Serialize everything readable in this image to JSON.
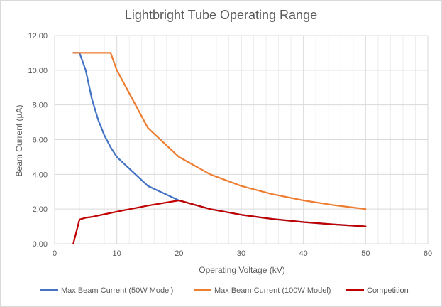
{
  "chart_data": {
    "type": "line",
    "title": "Lightbright Tube Operating Range",
    "xlabel": "Operating Voltage (kV)",
    "ylabel": "Beam Current (µA)",
    "xlim": [
      0,
      60
    ],
    "ylim": [
      0,
      12
    ],
    "x_ticks": [
      0,
      10,
      20,
      30,
      40,
      50,
      60
    ],
    "x_tick_labels": [
      "0",
      "10",
      "20",
      "30",
      "40",
      "50",
      "60"
    ],
    "y_ticks": [
      0,
      2,
      4,
      6,
      8,
      10,
      12
    ],
    "y_tick_labels": [
      "0.00",
      "2.00",
      "4.00",
      "6.00",
      "8.00",
      "10.00",
      "12.00"
    ],
    "major_grid": true,
    "minor_grid_x_step": 2,
    "legend_position": "bottom",
    "series": [
      {
        "name": "Max Beam Current (50W Model)",
        "color": "#4472c4",
        "points": [
          [
            3,
            11
          ],
          [
            4,
            11
          ],
          [
            5,
            10
          ],
          [
            6,
            8.33
          ],
          [
            7,
            7.14
          ],
          [
            8,
            6.25
          ],
          [
            9,
            5.56
          ],
          [
            10,
            5
          ],
          [
            15,
            3.33
          ],
          [
            20,
            2.5
          ],
          [
            25,
            2
          ],
          [
            30,
            1.67
          ],
          [
            35,
            1.43
          ],
          [
            40,
            1.25
          ],
          [
            45,
            1.11
          ],
          [
            50,
            1
          ]
        ]
      },
      {
        "name": "Max Beam Current (100W Model)",
        "color": "#ed7d31",
        "points": [
          [
            3,
            11
          ],
          [
            9,
            11
          ],
          [
            10,
            10
          ],
          [
            15,
            6.67
          ],
          [
            20,
            5
          ],
          [
            25,
            4
          ],
          [
            30,
            3.33
          ],
          [
            35,
            2.86
          ],
          [
            40,
            2.5
          ],
          [
            45,
            2.22
          ],
          [
            50,
            2
          ]
        ]
      },
      {
        "name": "Competition",
        "color": "#c00000",
        "points": [
          [
            3,
            0
          ],
          [
            4,
            1.4
          ],
          [
            5,
            1.5
          ],
          [
            6,
            1.55
          ],
          [
            8,
            1.7
          ],
          [
            10,
            1.85
          ],
          [
            15,
            2.2
          ],
          [
            20,
            2.5
          ],
          [
            25,
            2
          ],
          [
            30,
            1.67
          ],
          [
            35,
            1.43
          ],
          [
            40,
            1.25
          ],
          [
            45,
            1.11
          ],
          [
            50,
            1
          ]
        ]
      }
    ]
  }
}
